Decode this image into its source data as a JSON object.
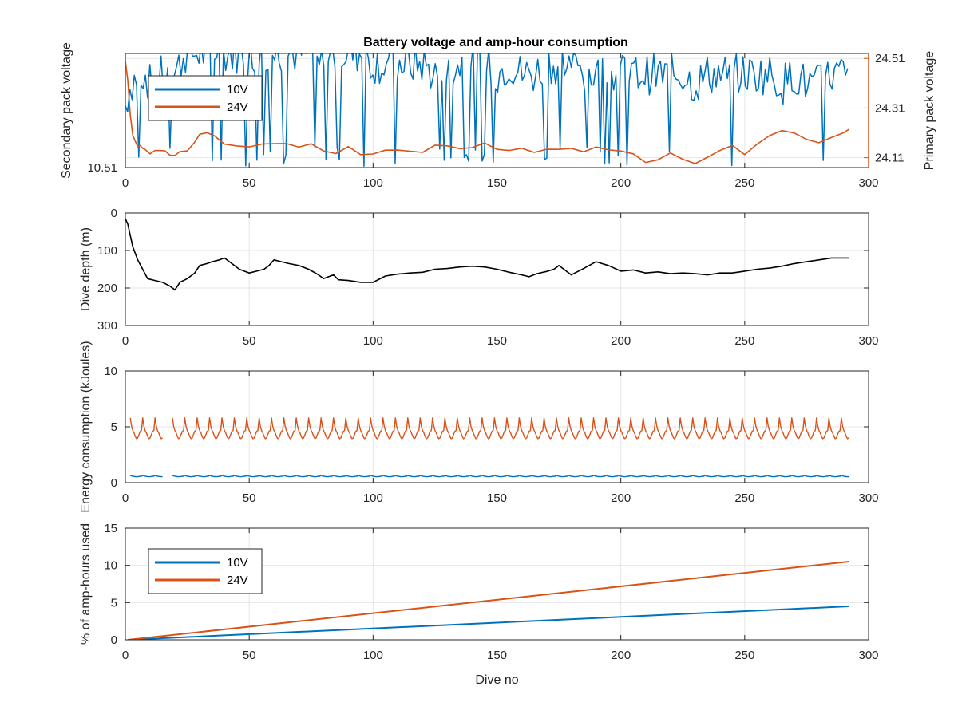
{
  "figure": {
    "title": "Battery voltage and amp-hour consumption",
    "colors": {
      "blue": "#0072BD",
      "orange": "#D95319",
      "black": "#000000",
      "grid": "#e6e6e6",
      "axis": "#262626"
    }
  },
  "chart_data": [
    {
      "id": "voltage",
      "type": "line",
      "title": "Battery voltage and amp-hour consumption",
      "xlabel": "",
      "xlim": [
        0,
        300
      ],
      "xticks": [
        0,
        50,
        100,
        150,
        200,
        250,
        300
      ],
      "grid": true,
      "legend": {
        "position": "top-left",
        "entries": [
          "10V",
          "24V"
        ]
      },
      "left_axis": {
        "label": "Secondary pack voltage",
        "color": "#0072BD",
        "ylim": [
          10.51,
          10.62
        ],
        "ticks": [
          10.51
        ],
        "tick_labels": [
          "10.51"
        ]
      },
      "right_axis": {
        "label": "Primary pack voltage",
        "color": "#D95319",
        "ylim": [
          24.07,
          24.53
        ],
        "ticks": [
          24.11,
          24.31,
          24.51
        ],
        "tick_labels": [
          "24.11",
          "24.31",
          "24.51"
        ]
      },
      "series": [
        {
          "name": "10V",
          "axis": "left",
          "color": "#0072BD",
          "noise_level": 10.6,
          "noise_amp": 0.02,
          "x": [
            0,
            2,
            5,
            8,
            12,
            14,
            16,
            18,
            20,
            22,
            24,
            26,
            28,
            30,
            35,
            40,
            45,
            50,
            55,
            60,
            65,
            70,
            75,
            80,
            85,
            90,
            95,
            100,
            105,
            110,
            115,
            120,
            125,
            130,
            135,
            140,
            145,
            150,
            155,
            160,
            165,
            170,
            175,
            180,
            185,
            190,
            195,
            200,
            205,
            210,
            215,
            220,
            225,
            230,
            235,
            240,
            245,
            250,
            255,
            260,
            265,
            270,
            275,
            280,
            285,
            290,
            292
          ],
          "y": [
            10.57,
            10.59,
            10.6,
            10.6,
            10.58,
            10.6,
            10.59,
            10.6,
            10.6,
            10.61,
            10.62,
            10.62,
            10.62,
            10.62,
            10.62,
            10.62,
            10.62,
            10.62,
            10.62,
            10.62,
            10.62,
            10.62,
            10.62,
            10.61,
            10.62,
            10.62,
            10.62,
            10.61,
            10.61,
            10.61,
            10.61,
            10.61,
            10.6,
            10.6,
            10.61,
            10.61,
            10.61,
            10.6,
            10.61,
            10.6,
            10.6,
            10.61,
            10.61,
            10.61,
            10.6,
            10.6,
            10.6,
            10.6,
            10.6,
            10.6,
            10.6,
            10.6,
            10.6,
            10.59,
            10.6,
            10.6,
            10.6,
            10.6,
            10.6,
            10.6,
            10.59,
            10.6,
            10.59,
            10.59,
            10.6,
            10.6,
            10.59
          ]
        },
        {
          "name": "24V",
          "axis": "right",
          "color": "#D95319",
          "x": [
            0,
            1,
            2,
            3,
            4,
            5,
            6,
            7,
            8,
            10,
            12,
            14,
            16,
            18,
            20,
            22,
            25,
            28,
            30,
            33,
            36,
            40,
            45,
            50,
            55,
            60,
            65,
            70,
            75,
            80,
            85,
            90,
            95,
            100,
            105,
            110,
            115,
            120,
            125,
            130,
            135,
            140,
            145,
            150,
            155,
            160,
            165,
            170,
            175,
            180,
            185,
            190,
            195,
            200,
            205,
            210,
            215,
            220,
            225,
            230,
            235,
            240,
            245,
            250,
            255,
            260,
            265,
            270,
            275,
            280,
            285,
            290,
            292
          ],
          "y": [
            24.5,
            24.42,
            24.28,
            24.2,
            24.18,
            24.16,
            24.15,
            24.15,
            24.14,
            24.13,
            24.13,
            24.14,
            24.14,
            24.12,
            24.11,
            24.13,
            24.14,
            24.17,
            24.2,
            24.22,
            24.19,
            24.16,
            24.15,
            24.16,
            24.17,
            24.17,
            24.16,
            24.15,
            24.16,
            24.14,
            24.13,
            24.15,
            24.13,
            24.12,
            24.14,
            24.14,
            24.14,
            24.13,
            24.17,
            24.16,
            24.15,
            24.16,
            24.17,
            24.15,
            24.13,
            24.14,
            24.13,
            24.15,
            24.15,
            24.14,
            24.14,
            24.15,
            24.14,
            24.14,
            24.12,
            24.1,
            24.11,
            24.12,
            24.1,
            24.08,
            24.11,
            24.13,
            24.15,
            24.13,
            24.17,
            24.19,
            24.21,
            24.2,
            24.19,
            24.17,
            24.19,
            24.22,
            24.23
          ]
        }
      ]
    },
    {
      "id": "depth",
      "type": "line",
      "xlabel": "",
      "ylabel": "Dive depth (m)",
      "xlim": [
        0,
        300
      ],
      "xticks": [
        0,
        50,
        100,
        150,
        200,
        250,
        300
      ],
      "ylim": [
        0,
        300
      ],
      "y_reversed": true,
      "yticks": [
        0,
        100,
        200,
        300
      ],
      "grid": true,
      "series": [
        {
          "color": "#000000",
          "x": [
            0,
            1,
            2,
            3,
            5,
            7,
            9,
            12,
            15,
            18,
            20,
            22,
            25,
            28,
            30,
            33,
            35,
            38,
            40,
            43,
            46,
            50,
            53,
            56,
            58,
            60,
            63,
            66,
            70,
            74,
            78,
            80,
            82,
            84,
            86,
            90,
            95,
            100,
            105,
            110,
            115,
            120,
            125,
            130,
            135,
            140,
            145,
            150,
            155,
            160,
            163,
            166,
            170,
            173,
            175,
            178,
            180,
            185,
            190,
            195,
            200,
            205,
            210,
            215,
            220,
            225,
            230,
            235,
            240,
            245,
            250,
            255,
            260,
            265,
            270,
            275,
            280,
            285,
            290,
            292
          ],
          "y": [
            15,
            30,
            60,
            90,
            125,
            150,
            175,
            180,
            185,
            195,
            205,
            185,
            175,
            160,
            140,
            135,
            130,
            125,
            120,
            135,
            150,
            160,
            155,
            150,
            140,
            125,
            130,
            135,
            140,
            150,
            165,
            175,
            170,
            165,
            178,
            180,
            185,
            185,
            168,
            163,
            160,
            158,
            150,
            148,
            144,
            142,
            144,
            150,
            158,
            165,
            170,
            162,
            156,
            150,
            140,
            155,
            165,
            148,
            130,
            140,
            155,
            152,
            160,
            157,
            162,
            160,
            162,
            165,
            160,
            160,
            155,
            150,
            147,
            142,
            135,
            130,
            125,
            120,
            120,
            120
          ]
        }
      ]
    },
    {
      "id": "energy",
      "type": "line",
      "xlabel": "",
      "ylabel": "Energy consumption (kJoules)",
      "xlim": [
        0,
        300
      ],
      "xticks": [
        0,
        50,
        100,
        150,
        200,
        250,
        300
      ],
      "ylim": [
        0,
        10
      ],
      "yticks": [
        0,
        5,
        10
      ],
      "grid": true,
      "series": [
        {
          "name": "24V",
          "color": "#D95319",
          "baseline": 4.3,
          "peak": 5.8,
          "cycle_dives": 5,
          "x_range": [
            2,
            292
          ],
          "gap": [
            15,
            19
          ]
        },
        {
          "name": "10V",
          "color": "#0072BD",
          "baseline": 0.55,
          "peak": 0.65,
          "cycle_dives": 5,
          "x_range": [
            2,
            292
          ],
          "gap": [
            15,
            19
          ]
        }
      ]
    },
    {
      "id": "amphours",
      "type": "line",
      "xlabel": "Dive no",
      "ylabel": "% of amp-hours used",
      "xlim": [
        0,
        300
      ],
      "xticks": [
        0,
        50,
        100,
        150,
        200,
        250,
        300
      ],
      "ylim": [
        0,
        15
      ],
      "yticks": [
        0,
        5,
        10,
        15
      ],
      "grid": true,
      "legend": {
        "position": "top-left",
        "entries": [
          "10V",
          "24V"
        ]
      },
      "series": [
        {
          "name": "10V",
          "color": "#0072BD",
          "x": [
            1,
            292
          ],
          "y": [
            0,
            4.5
          ]
        },
        {
          "name": "24V",
          "color": "#D95319",
          "x": [
            1,
            292
          ],
          "y": [
            0,
            10.5
          ]
        }
      ]
    }
  ]
}
